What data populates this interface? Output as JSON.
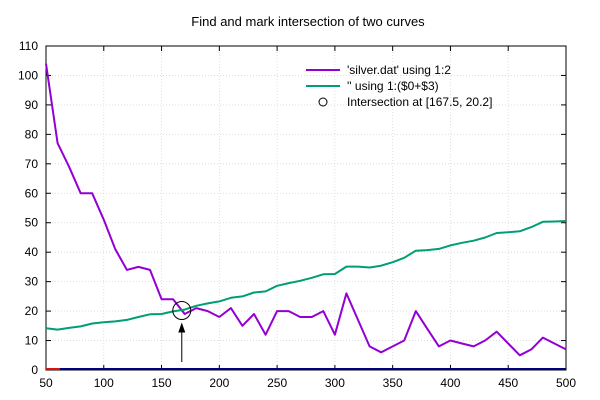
{
  "chart_data": {
    "type": "line",
    "title": "Find and mark intersection of two curves",
    "xlabel": "",
    "ylabel": "",
    "xlim": [
      50,
      500
    ],
    "ylim": [
      0,
      110
    ],
    "xticks": [
      50,
      100,
      150,
      200,
      250,
      300,
      350,
      400,
      450,
      500
    ],
    "yticks": [
      0,
      10,
      20,
      30,
      40,
      50,
      60,
      70,
      80,
      90,
      100,
      110
    ],
    "grid": true,
    "legend_position": "top-right",
    "series": [
      {
        "name": "'silver.dat' using 1:2",
        "color": "#9400d3",
        "x": [
          50,
          60,
          70,
          80,
          90,
          100,
          110,
          120,
          130,
          140,
          150,
          160,
          170,
          180,
          190,
          200,
          210,
          220,
          230,
          240,
          250,
          260,
          270,
          280,
          290,
          300,
          310,
          320,
          330,
          340,
          350,
          360,
          370,
          380,
          390,
          400,
          410,
          420,
          430,
          440,
          450,
          460,
          470,
          480,
          490,
          500
        ],
        "y": [
          104,
          77,
          69,
          60,
          60,
          51,
          41,
          34,
          35,
          34,
          24,
          24,
          19,
          21,
          20,
          18,
          21,
          15,
          19,
          12,
          20,
          20,
          18,
          18,
          20,
          12,
          26,
          17,
          8,
          6,
          8,
          10,
          20,
          14,
          8,
          10,
          9,
          8,
          10,
          13,
          9,
          5,
          7,
          11,
          9,
          7
        ]
      },
      {
        "name": "'' using 1:($0+$3)",
        "color": "#009e73",
        "x": [
          50,
          60,
          70,
          80,
          90,
          100,
          110,
          120,
          130,
          140,
          150,
          160,
          170,
          180,
          190,
          200,
          210,
          220,
          230,
          240,
          250,
          260,
          270,
          280,
          290,
          300,
          310,
          320,
          330,
          340,
          350,
          360,
          370,
          380,
          390,
          400,
          410,
          420,
          430,
          440,
          450,
          460,
          470,
          480,
          490,
          500
        ],
        "y": [
          14.2,
          13.7,
          14.3,
          14.8,
          15.8,
          16.2,
          16.5,
          17.0,
          18.0,
          18.9,
          19.0,
          19.9,
          20.5,
          21.8,
          22.6,
          23.3,
          24.5,
          25.0,
          26.3,
          26.7,
          28.6,
          29.5,
          30.3,
          31.3,
          32.5,
          32.6,
          35.1,
          35.1,
          34.8,
          35.4,
          36.6,
          38.1,
          40.5,
          40.7,
          41.1,
          42.3,
          43.2,
          43.9,
          45.0,
          46.5,
          46.8,
          47.1,
          48.5,
          50.3,
          50.4,
          50.6
        ]
      }
    ],
    "intersection": {
      "label": "Intersection at  [167.5, 20.2]",
      "x": 167.5,
      "y": 20.2
    },
    "baseline_colors": [
      "#000080",
      "#e01010"
    ]
  }
}
